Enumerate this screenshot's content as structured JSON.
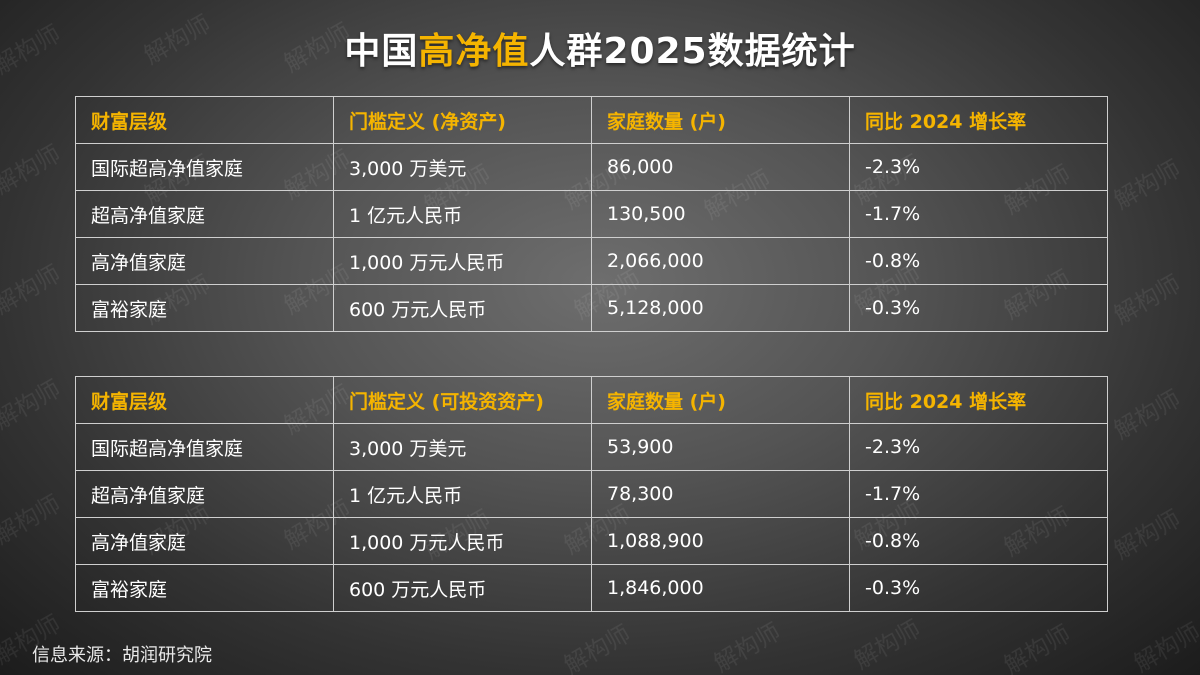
{
  "title": {
    "part1": "中国",
    "accent": "高净值",
    "part2": "人群2025数据统计"
  },
  "watermark": "解构师",
  "tables": [
    {
      "headers": [
        "财富层级",
        "门槛定义 (净资产)",
        "家庭数量 (户)",
        "同比 2024 增长率"
      ],
      "rows": [
        [
          "国际超高净值家庭",
          "3,000 万美元",
          "86,000",
          "-2.3%"
        ],
        [
          "超高净值家庭",
          "1 亿元人民币",
          "130,500",
          "-1.7%"
        ],
        [
          "高净值家庭",
          "1,000 万元人民币",
          "2,066,000",
          "-0.8%"
        ],
        [
          "富裕家庭",
          "600 万元人民币",
          "5,128,000",
          "-0.3%"
        ]
      ]
    },
    {
      "headers": [
        "财富层级",
        "门槛定义 (可投资资产)",
        "家庭数量 (户)",
        "同比 2024 增长率"
      ],
      "rows": [
        [
          "国际超高净值家庭",
          "3,000 万美元",
          "53,900",
          "-2.3%"
        ],
        [
          "超高净值家庭",
          "1 亿元人民币",
          "78,300",
          "-1.7%"
        ],
        [
          "高净值家庭",
          "1,000 万元人民币",
          "1,088,900",
          "-0.8%"
        ],
        [
          "富裕家庭",
          "600 万元人民币",
          "1,846,000",
          "-0.3%"
        ]
      ]
    }
  ],
  "source": "信息来源：胡润研究院",
  "colors": {
    "accent": "#f5b400",
    "border": "#cfcfcf",
    "text": "#ffffff"
  }
}
